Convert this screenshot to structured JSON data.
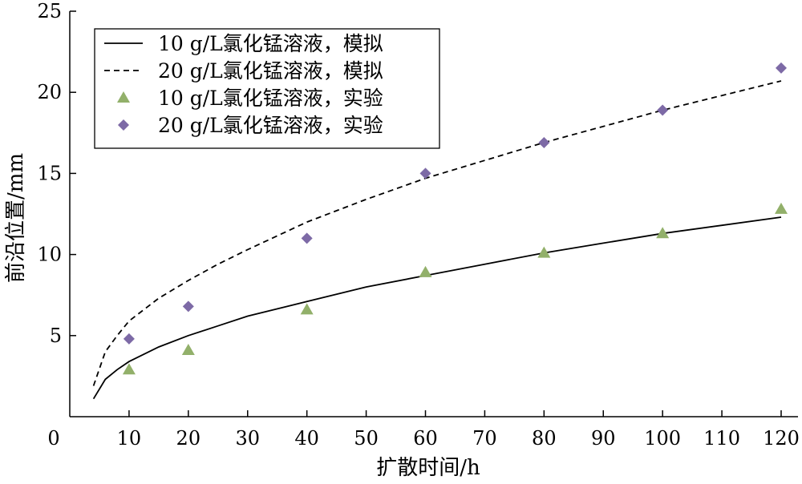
{
  "chart_data": {
    "type": "scatter",
    "xlabel": "扩散时间/h",
    "ylabel": "前沿位置/mm",
    "xlim": [
      0,
      120
    ],
    "ylim": [
      0,
      25
    ],
    "xticks": [
      0,
      10,
      20,
      30,
      40,
      50,
      60,
      70,
      80,
      90,
      100,
      110,
      120
    ],
    "yticks": [
      5,
      10,
      15,
      20,
      25
    ],
    "grid": false,
    "legend_position": "top-left",
    "series": [
      {
        "name": "10 g/L氯化锰溶液，模拟",
        "kind": "line",
        "style": "solid",
        "color": "#000000",
        "x": [
          4,
          6,
          8,
          10,
          15,
          20,
          25,
          30,
          40,
          50,
          60,
          70,
          80,
          90,
          100,
          110,
          120
        ],
        "y": [
          1.1,
          2.3,
          2.9,
          3.4,
          4.3,
          5.0,
          5.6,
          6.2,
          7.1,
          8.0,
          8.7,
          9.4,
          10.1,
          10.7,
          11.3,
          11.8,
          12.3
        ]
      },
      {
        "name": "20 g/L氯化锰溶液，模拟",
        "kind": "line",
        "style": "dashed",
        "color": "#000000",
        "x": [
          4,
          6,
          8,
          10,
          15,
          20,
          25,
          30,
          40,
          50,
          60,
          70,
          80,
          90,
          100,
          110,
          120
        ],
        "y": [
          1.9,
          4.0,
          5.0,
          5.9,
          7.3,
          8.4,
          9.4,
          10.3,
          12.0,
          13.4,
          14.7,
          15.8,
          16.9,
          17.9,
          18.9,
          19.8,
          20.7
        ]
      },
      {
        "name": "10 g/L氯化锰溶液，实验",
        "kind": "marker",
        "marker": "triangle",
        "color": "#92b06a",
        "x": [
          10,
          20,
          40,
          60,
          80,
          100,
          120
        ],
        "y": [
          2.9,
          4.1,
          6.6,
          8.9,
          10.1,
          11.3,
          12.8
        ]
      },
      {
        "name": "20 g/L氯化锰溶液，实验",
        "kind": "marker",
        "marker": "diamond",
        "color": "#7d6aa6",
        "x": [
          10,
          20,
          40,
          60,
          80,
          100,
          120
        ],
        "y": [
          4.8,
          6.8,
          11.0,
          15.0,
          16.9,
          18.9,
          21.5
        ]
      }
    ]
  }
}
